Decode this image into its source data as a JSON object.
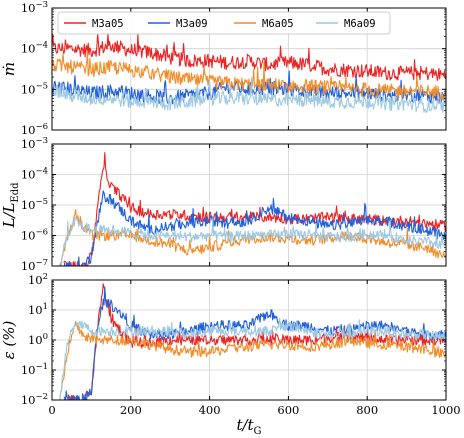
{
  "chart_data": {
    "type": "line",
    "x_axis": {
      "label": "t/t_G",
      "range": [
        0,
        1000
      ],
      "ticks": [
        0,
        200,
        400,
        600,
        800,
        1000
      ],
      "tick_labels": [
        "0",
        "200",
        "400",
        "600",
        "800",
        "1000"
      ]
    },
    "grid": true,
    "legend": {
      "placement": "top (upper panel)",
      "entries": [
        "M3a05",
        "M3a09",
        "M6a05",
        "M6a09"
      ]
    },
    "series_colors": {
      "M3a05": "#ee2222",
      "M3a09": "#1f5fdd",
      "M6a05": "#f28c28",
      "M6a09": "#9cc8e2"
    },
    "panels": [
      {
        "id": "mdot",
        "ylabel": "ṁ",
        "yscale": "log",
        "ylim": [
          1e-06,
          0.001
        ],
        "y_tick_labels": [
          "10^-6",
          "10^-5",
          "10^-4",
          "10^-3"
        ],
        "series": [
          {
            "name": "M3a05",
            "x": [
              0,
              50,
              100,
              150,
              200,
              250,
              300,
              350,
              400,
              450,
              500,
              550,
              600,
              650,
              700,
              750,
              800,
              850,
              900,
              950,
              1000
            ],
            "y": [
              0.0001,
              0.0001,
              9e-05,
              0.00012,
              9e-05,
              8e-05,
              6e-05,
              5e-05,
              5e-05,
              4.5e-05,
              5e-05,
              4e-05,
              4.5e-05,
              4e-05,
              3.2e-05,
              3e-05,
              2.8e-05,
              2.5e-05,
              2.5e-05,
              2.5e-05,
              2.2e-05
            ]
          },
          {
            "name": "M3a09",
            "x": [
              0,
              50,
              100,
              150,
              200,
              250,
              300,
              350,
              400,
              450,
              500,
              550,
              600,
              650,
              700,
              750,
              800,
              850,
              900,
              950,
              1000
            ],
            "y": [
              1.2e-05,
              1e-05,
              8e-06,
              9e-06,
              8e-06,
              7e-06,
              6e-06,
              7e-06,
              8e-06,
              1.2e-05,
              1e-05,
              1.1e-05,
              1e-05,
              9e-06,
              8e-06,
              8e-06,
              8e-06,
              7e-06,
              7e-06,
              7e-06,
              6e-06
            ]
          },
          {
            "name": "M6a05",
            "x": [
              0,
              50,
              100,
              150,
              200,
              250,
              300,
              350,
              400,
              450,
              500,
              550,
              600,
              650,
              700,
              750,
              800,
              850,
              900,
              950,
              1000
            ],
            "y": [
              4e-05,
              3.5e-05,
              3e-05,
              3.5e-05,
              3e-05,
              2.5e-05,
              2e-05,
              1.7e-05,
              1.5e-05,
              1.4e-05,
              1.3e-05,
              1.3e-05,
              1.2e-05,
              1.2e-05,
              1.1e-05,
              1e-05,
              1e-05,
              9e-06,
              9e-06,
              9e-06,
              8e-06
            ]
          },
          {
            "name": "M6a09",
            "x": [
              0,
              50,
              100,
              150,
              200,
              250,
              300,
              350,
              400,
              450,
              500,
              550,
              600,
              650,
              700,
              750,
              800,
              850,
              900,
              950,
              1000
            ],
            "y": [
              1e-05,
              7e-06,
              6e-06,
              6e-06,
              5e-06,
              5e-06,
              4.5e-06,
              5e-06,
              6e-06,
              6e-06,
              6e-06,
              5.5e-06,
              5.5e-06,
              5.5e-06,
              5e-06,
              5e-06,
              5e-06,
              4.5e-06,
              4.5e-06,
              4e-06,
              4e-06
            ]
          }
        ]
      },
      {
        "id": "luminosity",
        "ylabel": "L/L_Edd",
        "yscale": "log",
        "ylim": [
          1e-07,
          0.001
        ],
        "y_tick_labels": [
          "10^-7",
          "10^-6",
          "10^-5",
          "10^-4",
          "10^-3"
        ],
        "series": [
          {
            "name": "M3a05",
            "x": [
              30,
              60,
              80,
              100,
              110,
              120,
              130,
              150,
              175,
              200,
              250,
              300,
              350,
              400,
              450,
              500,
              550,
              600,
              650,
              700,
              750,
              800,
              850,
              900,
              950,
              1000
            ],
            "y": [
              1e-07,
              1e-07,
              1e-07,
              2e-07,
              2e-06,
              3e-05,
              0.0002,
              4e-05,
              2e-05,
              8e-06,
              5e-06,
              5e-06,
              4.5e-06,
              4e-06,
              4e-06,
              4e-06,
              4e-06,
              3.5e-06,
              3.5e-06,
              4e-06,
              3.5e-06,
              3.5e-06,
              3e-06,
              3e-06,
              2.5e-06,
              2e-06
            ]
          },
          {
            "name": "M3a09",
            "x": [
              30,
              60,
              80,
              100,
              110,
              120,
              130,
              150,
              175,
              200,
              250,
              300,
              350,
              400,
              450,
              500,
              550,
              600,
              650,
              700,
              750,
              800,
              850,
              900,
              950,
              1000
            ],
            "y": [
              1e-07,
              1e-07,
              1e-07,
              2e-07,
              1e-06,
              5e-06,
              2e-05,
              1.5e-05,
              7e-06,
              3e-06,
              1.5e-06,
              2e-06,
              2.5e-06,
              3e-06,
              2.5e-06,
              3e-06,
              8e-06,
              4e-06,
              3e-06,
              2e-06,
              2.5e-06,
              3e-06,
              3e-06,
              2e-06,
              1.5e-06,
              9e-07
            ]
          },
          {
            "name": "M6a05",
            "x": [
              20,
              40,
              60,
              80,
              100,
              130,
              160,
              200,
              250,
              300,
              350,
              400,
              450,
              500,
              550,
              600,
              650,
              700,
              750,
              800,
              850,
              900,
              950,
              1000
            ],
            "y": [
              1e-07,
              1e-06,
              5e-06,
              2e-06,
              1e-06,
              1e-06,
              1e-06,
              1e-06,
              7e-07,
              5e-07,
              3e-07,
              4e-07,
              6e-07,
              8e-07,
              9e-07,
              8e-07,
              7e-07,
              8e-07,
              1e-06,
              8e-07,
              6e-07,
              5e-07,
              4e-07,
              2e-07
            ]
          },
          {
            "name": "M6a09",
            "x": [
              20,
              40,
              60,
              80,
              100,
              130,
              160,
              200,
              250,
              300,
              350,
              400,
              450,
              500,
              550,
              600,
              650,
              700,
              750,
              800,
              850,
              900,
              950,
              1000
            ],
            "y": [
              1e-07,
              1e-06,
              3e-06,
              2e-06,
              1.5e-06,
              1.5e-06,
              1.5e-06,
              1.2e-06,
              1e-06,
              1e-06,
              9e-07,
              1e-06,
              9e-07,
              1e-06,
              1e-06,
              1.1e-06,
              1e-06,
              9e-07,
              9e-07,
              1.1e-06,
              1e-06,
              7e-07,
              6e-07,
              5e-07
            ]
          }
        ]
      },
      {
        "id": "efficiency",
        "ylabel": "ε (%)",
        "yscale": "log",
        "ylim": [
          0.01,
          100
        ],
        "y_tick_labels": [
          "10^-2",
          "10^-1",
          "10^0",
          "10^1",
          "10^2"
        ],
        "series": [
          {
            "name": "M3a05",
            "x": [
              30,
              60,
              80,
              100,
              110,
              120,
              130,
              150,
              175,
              200,
              250,
              300,
              350,
              400,
              450,
              500,
              550,
              600,
              650,
              700,
              750,
              800,
              850,
              900,
              950,
              1000
            ],
            "y": [
              0.01,
              0.01,
              0.01,
              0.02,
              0.5,
              8,
              60,
              5,
              2,
              0.8,
              0.8,
              1,
              1,
              1,
              1,
              1,
              1,
              1,
              1,
              1.2,
              1.2,
              1.2,
              1,
              1,
              1,
              1
            ]
          },
          {
            "name": "M3a09",
            "x": [
              30,
              60,
              80,
              100,
              110,
              120,
              130,
              150,
              175,
              200,
              250,
              300,
              350,
              400,
              450,
              500,
              550,
              600,
              650,
              700,
              750,
              800,
              850,
              900,
              950,
              1000
            ],
            "y": [
              0.01,
              0.01,
              0.01,
              0.02,
              0.5,
              5,
              20,
              15,
              8,
              3,
              1.5,
              1.5,
              2,
              3,
              3,
              3,
              8,
              3,
              3,
              2,
              2,
              3,
              3,
              2,
              1.5,
              1.5
            ]
          },
          {
            "name": "M6a05",
            "x": [
              20,
              40,
              60,
              80,
              100,
              130,
              160,
              200,
              250,
              300,
              350,
              400,
              450,
              500,
              550,
              600,
              650,
              700,
              750,
              800,
              850,
              900,
              950,
              1000
            ],
            "y": [
              0.01,
              0.5,
              3,
              1.5,
              1,
              1,
              1,
              1,
              0.7,
              0.5,
              0.4,
              0.4,
              0.5,
              0.6,
              0.7,
              0.7,
              0.6,
              0.7,
              0.9,
              0.8,
              0.7,
              0.6,
              0.5,
              0.3
            ]
          },
          {
            "name": "M6a09",
            "x": [
              20,
              40,
              60,
              80,
              100,
              130,
              160,
              200,
              250,
              300,
              350,
              400,
              450,
              500,
              550,
              600,
              650,
              700,
              750,
              800,
              850,
              900,
              950,
              1000
            ],
            "y": [
              0.01,
              1,
              4,
              3,
              2,
              2,
              2,
              2,
              2,
              2,
              1.5,
              2,
              2,
              2,
              2,
              3,
              2,
              1.5,
              1.5,
              2,
              2,
              1.5,
              1.5,
              1.2
            ]
          }
        ]
      }
    ]
  }
}
